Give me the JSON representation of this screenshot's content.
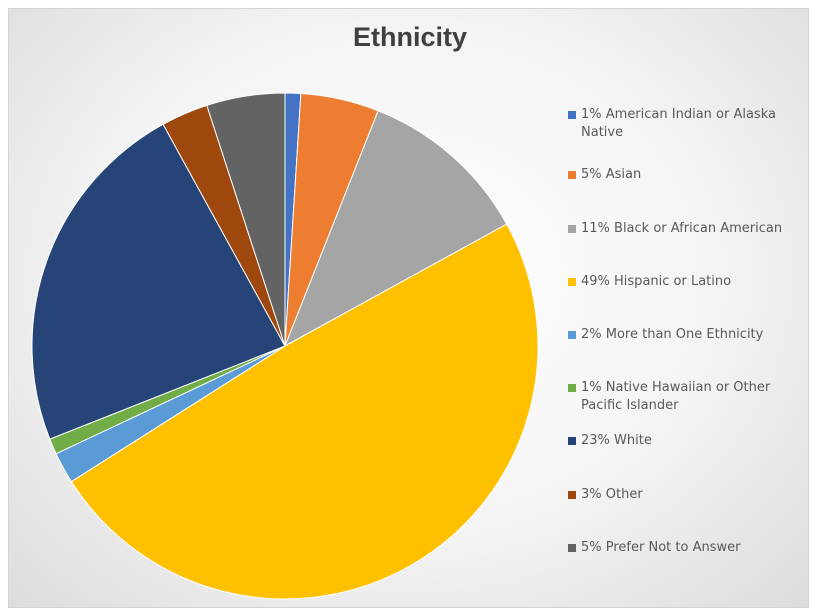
{
  "chart_data": {
    "type": "pie",
    "title": "Ethnicity",
    "legend_position": "right",
    "slices": [
      {
        "label": "1% American Indian or Alaska Native",
        "value": 1,
        "color": "#4472C4"
      },
      {
        "label": "5% Asian",
        "value": 5,
        "color": "#ED7D31"
      },
      {
        "label": "11% Black or African American",
        "value": 11,
        "color": "#A5A5A5"
      },
      {
        "label": "49% Hispanic or Latino",
        "value": 49,
        "color": "#FFC000"
      },
      {
        "label": "2% More than One Ethnicity",
        "value": 2,
        "color": "#5B9BD5"
      },
      {
        "label": "1% Native Hawaiian or Other Pacific Islander",
        "value": 1,
        "color": "#70AD47"
      },
      {
        "label": "23% White",
        "value": 23,
        "color": "#264478"
      },
      {
        "label": "3% Other",
        "value": 3,
        "color": "#9E480E"
      },
      {
        "label": "5% Prefer Not to Answer",
        "value": 5,
        "color": "#636363"
      }
    ]
  }
}
